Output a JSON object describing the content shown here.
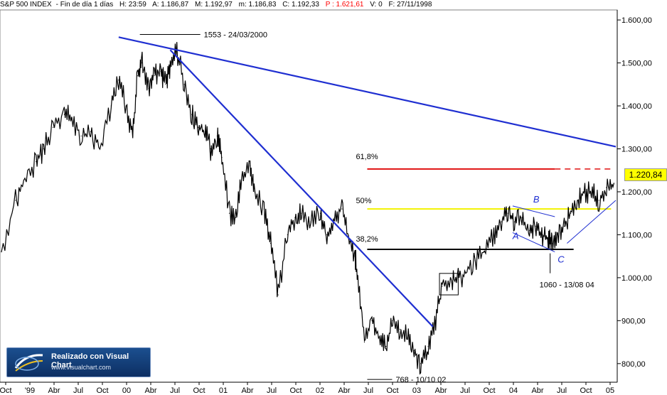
{
  "header": {
    "instrument": "S&P 500 INDEX",
    "period": "Fin de día 1 días",
    "hour": "H: 23:59",
    "open": "A: 1.186,87",
    "high": "M: 1.192,97",
    "low": "m: 1.186,83",
    "close": "C: 1.192,33",
    "p": "P : 1.621,61",
    "volume": "V: 0",
    "date": "F: 27/11/1998"
  },
  "last_value": "1.220,84",
  "logo": {
    "title": "Realizado con Visual Chart",
    "url": "www.visualchart.com",
    "icon": "visualchart-logo-icon"
  },
  "colors": {
    "price": "#000000",
    "trendline": "#1f2fd1",
    "fib618": "#e01010",
    "fib50": "#f2f200",
    "fib382": "#000000",
    "last_box": "#ffff00"
  },
  "chart_data": {
    "type": "line",
    "x_axis": [
      "Oct",
      "'99",
      "Abr",
      "Jul",
      "Oct",
      "00",
      "Abr",
      "Jul",
      "Oct",
      "01",
      "Abr",
      "Jul",
      "Oct",
      "02",
      "Abr",
      "Jul",
      "Oct",
      "03",
      "Abr",
      "Jul",
      "Oct",
      "04",
      "Abr",
      "Jul",
      "Oct",
      "05"
    ],
    "y_axis": [
      "1.600,00",
      "1.500,00",
      "1.400,00",
      "1.300,00",
      "1.200,00",
      "1.100,00",
      "1.000,00",
      "900,00",
      "800,00"
    ],
    "ylim": [
      760,
      1620
    ],
    "xlim": [
      1998.75,
      2005.3
    ],
    "series": [
      {
        "x": [
          1998.75,
          1998.9,
          1999.0,
          1999.12,
          1999.2,
          1999.3,
          1999.42,
          1999.5,
          1999.6,
          1999.7,
          1999.8,
          1999.92,
          2000.0,
          2000.08,
          2000.15,
          2000.2,
          2000.25,
          2000.32,
          2000.38,
          2000.45,
          2000.5,
          2000.55,
          2000.62,
          2000.7,
          2000.78,
          2000.85,
          2000.92,
          2000.98,
          2001.05,
          2001.1,
          2001.18,
          2001.25,
          2001.32,
          2001.4,
          2001.45,
          2001.55,
          2001.62,
          2001.7,
          2001.8,
          2001.88,
          2001.95,
          2002.05,
          2002.15,
          2002.22,
          2002.3,
          2002.38,
          2002.45,
          2002.52,
          2002.55,
          2002.62,
          2002.7,
          2002.78,
          2002.85,
          2002.92,
          2003.0,
          2003.08,
          2003.15,
          2003.22,
          2003.3,
          2003.38,
          2003.45,
          2003.55,
          2003.62,
          2003.7,
          2003.8,
          2003.9,
          2004.0,
          2004.08,
          2004.15,
          2004.22,
          2004.3,
          2004.38,
          2004.45,
          2004.52,
          2004.58,
          2004.62,
          2004.68,
          2004.75,
          2004.82,
          2004.9,
          2004.97,
          2005.05,
          2005.12,
          2005.2,
          2005.28
        ],
        "y": [
          1060,
          1180,
          1230,
          1270,
          1300,
          1350,
          1380,
          1370,
          1330,
          1340,
          1300,
          1400,
          1460,
          1400,
          1330,
          1470,
          1500,
          1440,
          1470,
          1480,
          1450,
          1490,
          1530,
          1450,
          1380,
          1350,
          1340,
          1300,
          1330,
          1280,
          1150,
          1140,
          1240,
          1260,
          1200,
          1160,
          1080,
          960,
          1100,
          1140,
          1150,
          1130,
          1150,
          1100,
          1140,
          1160,
          1090,
          1050,
          1000,
          850,
          900,
          860,
          840,
          900,
          880,
          860,
          830,
          800,
          840,
          900,
          980,
          990,
          1000,
          1010,
          1040,
          1060,
          1100,
          1130,
          1150,
          1130,
          1140,
          1110,
          1120,
          1100,
          1090,
          1080,
          1100,
          1120,
          1150,
          1180,
          1200,
          1200,
          1180,
          1210,
          1220
        ]
      }
    ],
    "annotations": {
      "high_label": "1553 - 24/03/2000",
      "low_label": "768 - 10/10 02",
      "low2004_label": "1060 - 13/08 04",
      "fib618": "61,8%",
      "fib50": "50%",
      "fib382": "38,2%",
      "wave_a": "A",
      "wave_b": "B",
      "wave_c": "C"
    },
    "levels": {
      "fib618": 1253,
      "fib50": 1160,
      "fib382": 1066,
      "high": 1553,
      "low": 768,
      "low2004": 1060
    },
    "trendlines": [
      {
        "name": "long-term-resistance",
        "from": [
          2000.0,
          1560
        ],
        "to": [
          2005.3,
          1305
        ]
      },
      {
        "name": "bear-trendline",
        "from": [
          2000.55,
          1530
        ],
        "to": [
          2003.35,
          886
        ]
      },
      {
        "name": "channel-upper",
        "from": [
          2004.2,
          1167
        ],
        "to": [
          2004.65,
          1142
        ]
      },
      {
        "name": "channel-lower",
        "from": [
          2004.2,
          1105
        ],
        "to": [
          2004.65,
          1060
        ]
      },
      {
        "name": "rising-support",
        "from": [
          2004.78,
          1080
        ],
        "to": [
          2005.3,
          1180
        ]
      }
    ],
    "grid": false,
    "legend": "none"
  }
}
